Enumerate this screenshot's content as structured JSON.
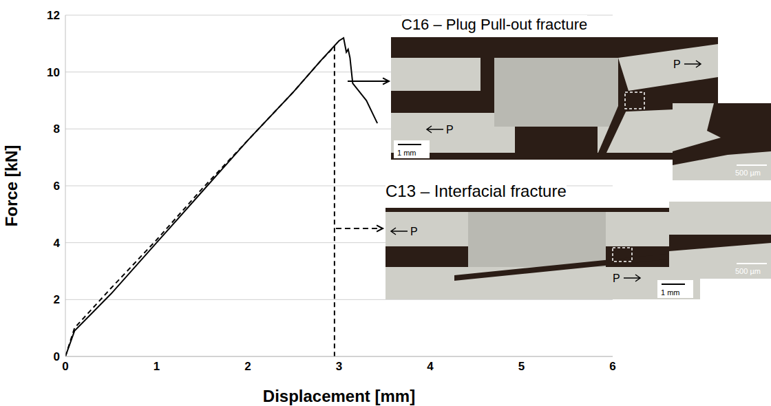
{
  "chart_data": {
    "type": "line",
    "xlabel": "Displacement [mm]",
    "ylabel": "Force [kN]",
    "xlim": [
      0,
      6
    ],
    "xticks": [
      0,
      1,
      2,
      3,
      4,
      5,
      6
    ],
    "ylim": [
      0,
      12
    ],
    "yticks": [
      0,
      2,
      4,
      6,
      8,
      10,
      12
    ],
    "grid": true,
    "series": [
      {
        "name": "C16",
        "color": "#000000",
        "line_style": "solid",
        "x": [
          0,
          0.1,
          0.5,
          1,
          1.5,
          2,
          2.5,
          2.8,
          3.0,
          3.05,
          3.08,
          3.1,
          3.12,
          3.15,
          3.2,
          3.3,
          3.42
        ],
        "values": [
          0,
          0.9,
          2.2,
          4.0,
          5.8,
          7.6,
          9.3,
          10.4,
          11.1,
          11.2,
          10.7,
          10.8,
          10.5,
          9.6,
          9.4,
          9.0,
          8.2
        ]
      },
      {
        "name": "C13",
        "color": "#000000",
        "line_style": "dashed",
        "x": [
          0,
          0.1,
          0.5,
          1,
          1.5,
          2,
          2.5,
          2.8,
          2.95,
          2.95
        ],
        "values": [
          0,
          1.0,
          2.4,
          4.1,
          5.9,
          7.6,
          9.3,
          10.4,
          10.9,
          0
        ]
      }
    ],
    "panels": [
      {
        "title": "C16 – Plug Pull-out fracture",
        "load_labels": [
          "P",
          "P"
        ],
        "scale_bars": [
          "1 mm",
          "500 µm"
        ]
      },
      {
        "title": "C13 – Interfacial fracture",
        "load_labels": [
          "P",
          "P"
        ],
        "scale_bars": [
          "1 mm",
          "500 µm"
        ]
      }
    ]
  }
}
